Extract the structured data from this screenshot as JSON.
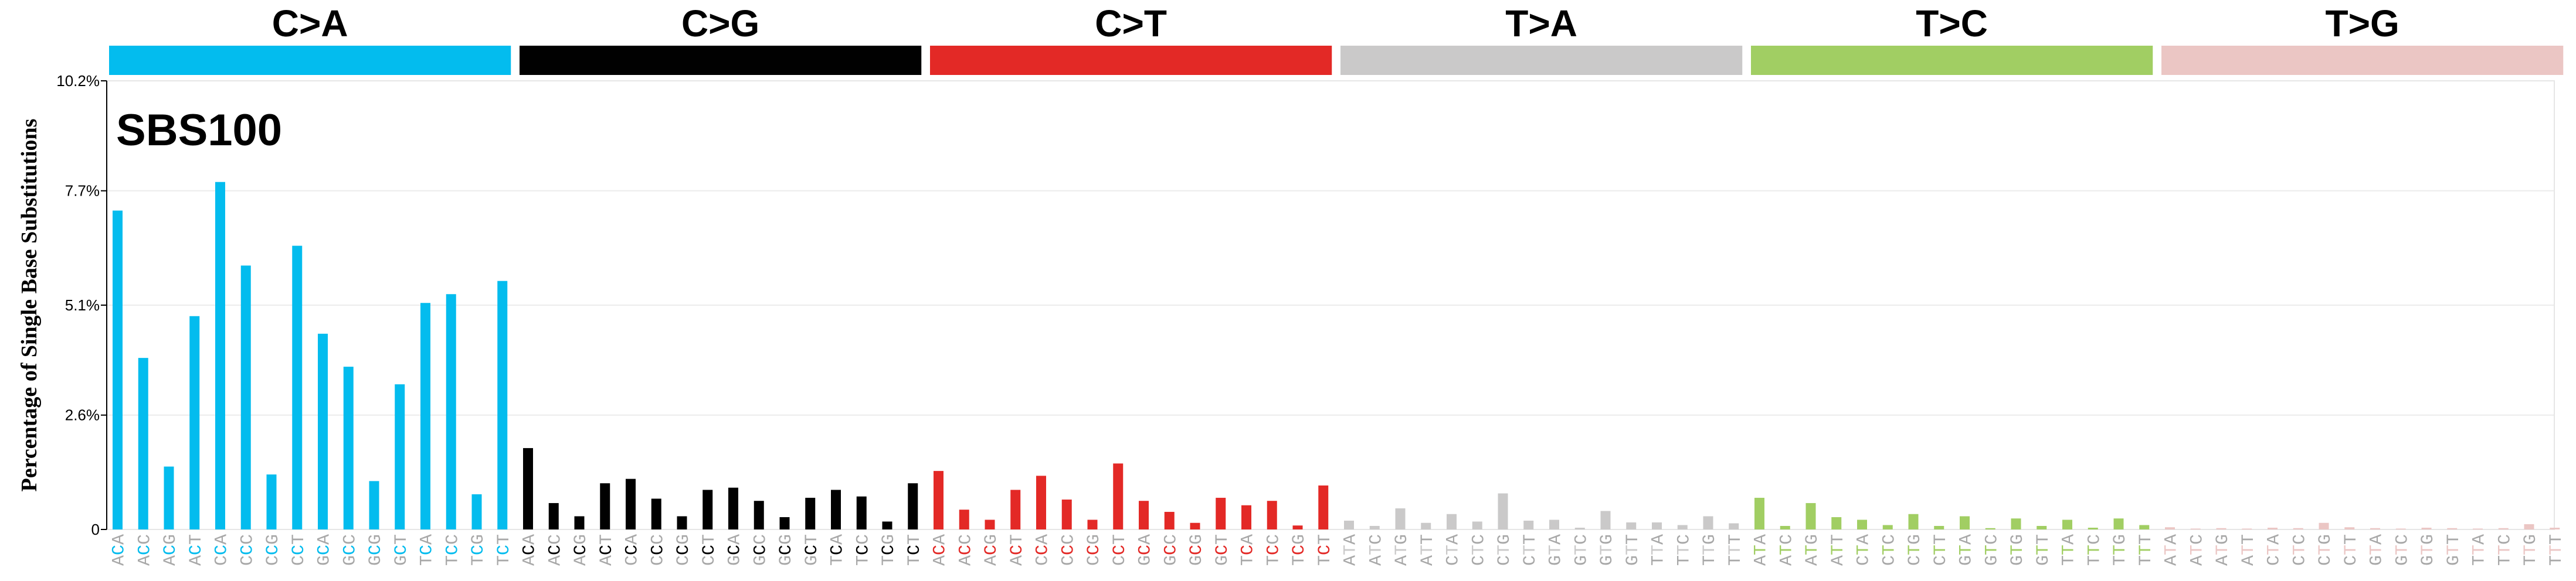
{
  "chart_data": {
    "type": "bar",
    "title": "SBS100",
    "ylabel": "Percentage of Single Base Substitutions",
    "ylim": [
      0,
      10.2
    ],
    "y_ticks": [
      "0",
      "2.6%",
      "5.1%",
      "7.7%",
      "10.2%"
    ],
    "y_tick_values": [
      0,
      2.6,
      5.1,
      7.7,
      10.2
    ],
    "grid": true,
    "groups": [
      {
        "label": "C>A",
        "color": "#03bcee"
      },
      {
        "label": "C>G",
        "color": "#010101"
      },
      {
        "label": "C>T",
        "color": "#e32926"
      },
      {
        "label": "T>A",
        "color": "#cac9c9"
      },
      {
        "label": "T>C",
        "color": "#a1ce63"
      },
      {
        "label": "T>G",
        "color": "#ebc6c4"
      }
    ],
    "categories": [
      "ACA",
      "ACC",
      "ACG",
      "ACT",
      "CCA",
      "CCC",
      "CCG",
      "CCT",
      "GCA",
      "GCC",
      "GCG",
      "GCT",
      "TCA",
      "TCC",
      "TCG",
      "TCT",
      "ACA",
      "ACC",
      "ACG",
      "ACT",
      "CCA",
      "CCC",
      "CCG",
      "CCT",
      "GCA",
      "GCC",
      "GCG",
      "GCT",
      "TCA",
      "TCC",
      "TCG",
      "TCT",
      "ACA",
      "ACC",
      "ACG",
      "ACT",
      "CCA",
      "CCC",
      "CCG",
      "CCT",
      "GCA",
      "GCC",
      "GCG",
      "GCT",
      "TCA",
      "TCC",
      "TCG",
      "TCT",
      "ATA",
      "ATC",
      "ATG",
      "ATT",
      "CTA",
      "CTC",
      "CTG",
      "CTT",
      "GTA",
      "GTC",
      "GTG",
      "GTT",
      "TTA",
      "TTC",
      "TTG",
      "TTT",
      "ATA",
      "ATC",
      "ATG",
      "ATT",
      "CTA",
      "CTC",
      "CTG",
      "CTT",
      "GTA",
      "GTC",
      "GTG",
      "GTT",
      "TTA",
      "TTC",
      "TTG",
      "TTT",
      "ATA",
      "ATC",
      "ATG",
      "ATT",
      "CTA",
      "CTC",
      "CTG",
      "CTT",
      "GTA",
      "GTC",
      "GTG",
      "GTT",
      "TTA",
      "TTC",
      "TTG",
      "TTT"
    ],
    "values": [
      7.25,
      3.9,
      1.43,
      4.85,
      7.9,
      6.0,
      1.25,
      6.45,
      4.45,
      3.7,
      1.1,
      3.3,
      5.15,
      5.35,
      0.8,
      5.65,
      1.85,
      0.6,
      0.3,
      1.05,
      1.15,
      0.7,
      0.3,
      0.9,
      0.95,
      0.65,
      0.28,
      0.72,
      0.9,
      0.75,
      0.18,
      1.05,
      1.33,
      0.45,
      0.22,
      0.9,
      1.22,
      0.68,
      0.22,
      1.5,
      0.65,
      0.4,
      0.15,
      0.72,
      0.55,
      0.65,
      0.09,
      1.0,
      0.2,
      0.08,
      0.48,
      0.15,
      0.35,
      0.18,
      0.82,
      0.2,
      0.22,
      0.04,
      0.42,
      0.16,
      0.16,
      0.1,
      0.3,
      0.14,
      0.72,
      0.08,
      0.6,
      0.28,
      0.22,
      0.1,
      0.35,
      0.08,
      0.3,
      0.03,
      0.25,
      0.08,
      0.22,
      0.04,
      0.25,
      0.1,
      0.05,
      0.02,
      0.03,
      0.02,
      0.04,
      0.03,
      0.15,
      0.05,
      0.03,
      0.02,
      0.04,
      0.03,
      0.02,
      0.03,
      0.12,
      0.04
    ]
  }
}
